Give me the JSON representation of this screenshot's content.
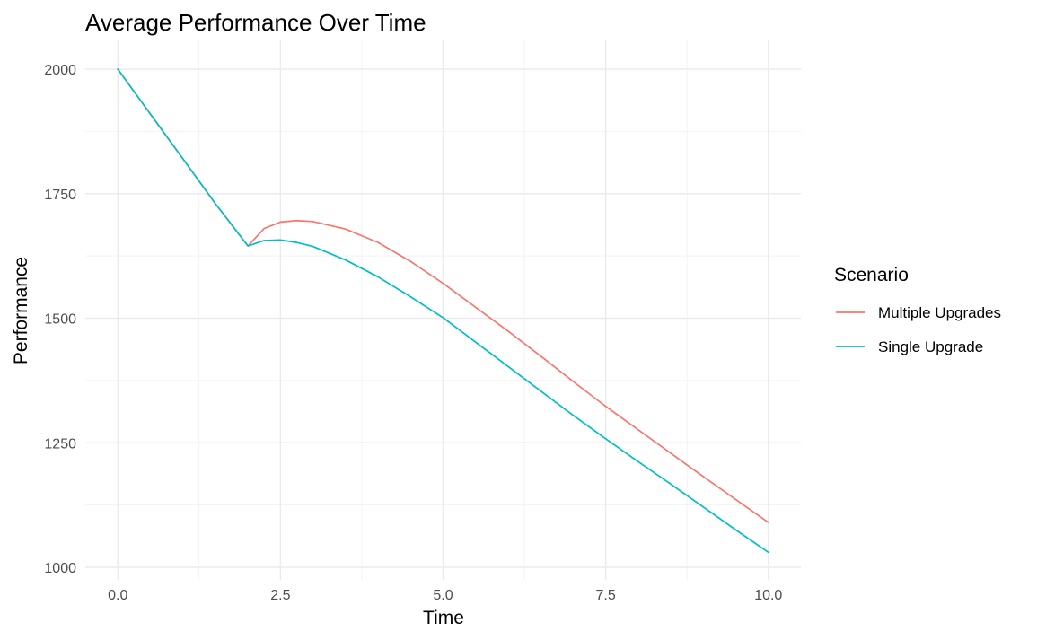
{
  "chart_data": {
    "type": "line",
    "title": "Average Performance Over Time",
    "xlabel": "Time",
    "ylabel": "Performance",
    "xlim": [
      -0.5,
      10.5
    ],
    "ylim": [
      1000,
      2000
    ],
    "x_ticks": [
      0.0,
      2.5,
      5.0,
      7.5,
      10.0
    ],
    "x_tick_labels": [
      "0.0",
      "2.5",
      "5.0",
      "7.5",
      "10.0"
    ],
    "y_ticks": [
      1000,
      1250,
      1500,
      1750,
      2000
    ],
    "y_tick_labels": [
      "1000",
      "1250",
      "1500",
      "1750",
      "2000"
    ],
    "grid": true,
    "legend": {
      "title": "Scenario",
      "position": "right"
    },
    "series": [
      {
        "name": "Multiple Upgrades",
        "color": "#F8766D",
        "x": [
          0.0,
          0.5,
          1.0,
          1.5,
          2.0,
          2.25,
          2.5,
          2.75,
          3.0,
          3.5,
          4.0,
          4.5,
          5.0,
          5.5,
          6.0,
          6.5,
          7.0,
          7.5,
          8.0,
          8.5,
          9.0,
          9.5,
          10.0
        ],
        "y": [
          2000,
          1910,
          1820,
          1730,
          1645,
          1680,
          1693,
          1696,
          1694,
          1679,
          1652,
          1614,
          1570,
          1522,
          1474,
          1424,
          1373,
          1323,
          1276,
          1229,
          1182,
          1136,
          1090
        ]
      },
      {
        "name": "Single Upgrade",
        "color": "#00BFC4",
        "x": [
          0.0,
          0.5,
          1.0,
          1.5,
          2.0,
          2.25,
          2.5,
          2.75,
          3.0,
          3.5,
          4.0,
          4.5,
          5.0,
          5.5,
          6.0,
          6.5,
          7.0,
          7.5,
          8.0,
          8.5,
          9.0,
          9.5,
          10.0
        ],
        "y": [
          2000,
          1910,
          1820,
          1730,
          1645,
          1656,
          1657,
          1652,
          1644,
          1617,
          1583,
          1543,
          1501,
          1452,
          1403,
          1354,
          1305,
          1258,
          1212,
          1167,
          1121,
          1075,
          1030
        ]
      }
    ]
  }
}
